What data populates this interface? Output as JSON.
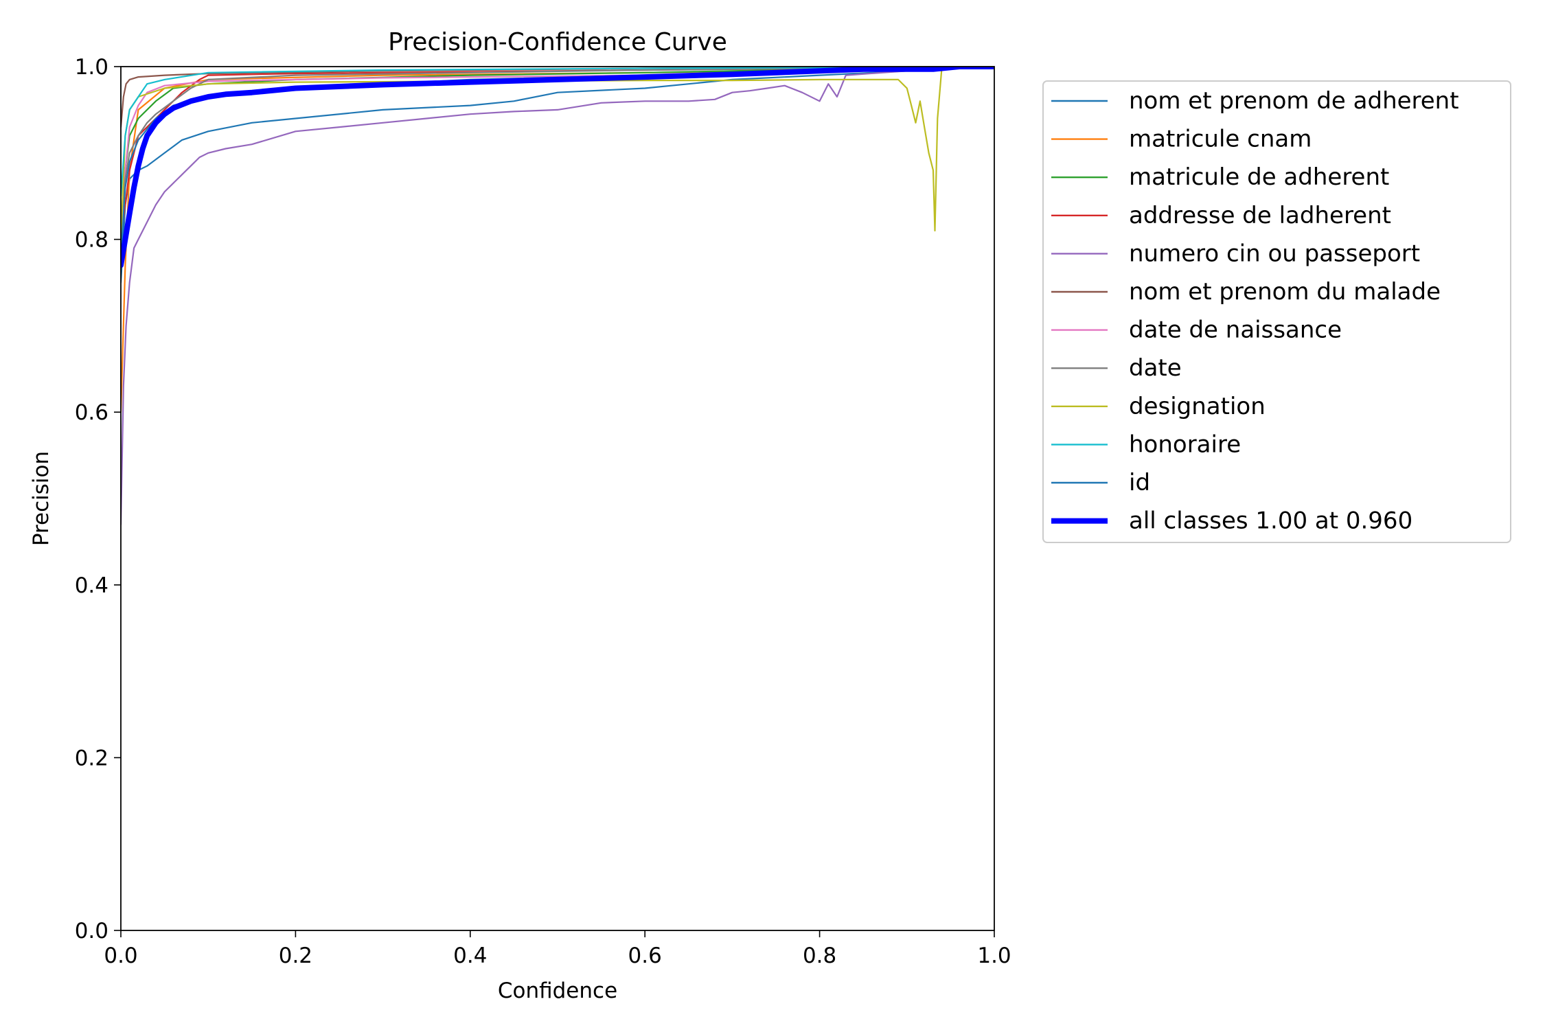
{
  "chart_data": {
    "type": "line",
    "title": "Precision-Confidence Curve",
    "xlabel": "Confidence",
    "ylabel": "Precision",
    "xlim": [
      0,
      1
    ],
    "ylim": [
      0,
      1
    ],
    "xticks": [
      0.0,
      0.2,
      0.4,
      0.6,
      0.8,
      1.0
    ],
    "yticks": [
      0.0,
      0.2,
      0.4,
      0.6,
      0.8,
      1.0
    ],
    "xtick_labels": [
      "0.0",
      "0.2",
      "0.4",
      "0.6",
      "0.8",
      "1.0"
    ],
    "ytick_labels": [
      "0.0",
      "0.2",
      "0.4",
      "0.6",
      "0.8",
      "1.0"
    ],
    "grid": false,
    "legend_position": "outside-right-top",
    "series": [
      {
        "name": "nom et prenom de adherent",
        "color": "#1f77b4",
        "x": [
          0.0,
          0.005,
          0.01,
          0.02,
          0.03,
          0.05,
          0.07,
          0.1,
          0.15,
          0.2,
          0.3,
          0.4,
          0.45,
          0.5,
          0.6,
          0.7,
          0.8,
          0.9,
          1.0
        ],
        "y": [
          0.75,
          0.84,
          0.87,
          0.88,
          0.885,
          0.9,
          0.915,
          0.925,
          0.935,
          0.94,
          0.95,
          0.955,
          0.96,
          0.97,
          0.975,
          0.985,
          0.99,
          0.995,
          1.0
        ]
      },
      {
        "name": "matricule cnam",
        "color": "#ff7f0e",
        "x": [
          0.0,
          0.005,
          0.01,
          0.02,
          0.05,
          0.1,
          0.3,
          0.6,
          0.8,
          0.9,
          1.0
        ],
        "y": [
          0.6,
          0.77,
          0.88,
          0.95,
          0.975,
          0.985,
          0.99,
          0.993,
          0.996,
          0.998,
          1.0
        ]
      },
      {
        "name": "matricule de adherent",
        "color": "#2ca02c",
        "x": [
          0.0,
          0.005,
          0.01,
          0.02,
          0.04,
          0.06,
          0.1,
          0.2,
          0.4,
          0.6,
          0.8,
          1.0
        ],
        "y": [
          0.8,
          0.88,
          0.92,
          0.94,
          0.96,
          0.975,
          0.98,
          0.985,
          0.99,
          0.993,
          0.997,
          1.0
        ]
      },
      {
        "name": "addresse de ladherent",
        "color": "#d62728",
        "x": [
          0.0,
          0.01,
          0.02,
          0.05,
          0.07,
          0.09,
          0.1,
          0.2,
          0.5,
          0.8,
          1.0
        ],
        "y": [
          0.8,
          0.88,
          0.92,
          0.95,
          0.97,
          0.985,
          0.99,
          0.992,
          0.995,
          0.998,
          1.0
        ]
      },
      {
        "name": "numero cin ou passeport",
        "color": "#9467bd",
        "x": [
          0.0,
          0.003,
          0.006,
          0.01,
          0.015,
          0.02,
          0.03,
          0.04,
          0.05,
          0.06,
          0.07,
          0.08,
          0.09,
          0.1,
          0.12,
          0.15,
          0.2,
          0.25,
          0.3,
          0.35,
          0.4,
          0.45,
          0.5,
          0.55,
          0.6,
          0.65,
          0.68,
          0.7,
          0.72,
          0.74,
          0.76,
          0.78,
          0.8,
          0.81,
          0.82,
          0.83,
          0.9,
          1.0
        ],
        "y": [
          0.47,
          0.63,
          0.7,
          0.75,
          0.79,
          0.8,
          0.82,
          0.84,
          0.855,
          0.865,
          0.875,
          0.885,
          0.895,
          0.9,
          0.905,
          0.91,
          0.925,
          0.93,
          0.935,
          0.94,
          0.945,
          0.948,
          0.95,
          0.958,
          0.96,
          0.96,
          0.962,
          0.97,
          0.972,
          0.975,
          0.978,
          0.97,
          0.96,
          0.98,
          0.965,
          0.99,
          0.995,
          1.0
        ]
      },
      {
        "name": "nom et prenom du malade",
        "color": "#8c564b",
        "x": [
          0.0,
          0.003,
          0.006,
          0.01,
          0.02,
          0.05,
          0.1,
          0.3,
          0.6,
          1.0
        ],
        "y": [
          0.93,
          0.965,
          0.98,
          0.985,
          0.988,
          0.99,
          0.992,
          0.995,
          0.998,
          1.0
        ]
      },
      {
        "name": "date de naissance",
        "color": "#e377c2",
        "x": [
          0.0,
          0.005,
          0.01,
          0.02,
          0.03,
          0.05,
          0.1,
          0.3,
          0.6,
          0.8,
          1.0
        ],
        "y": [
          0.8,
          0.88,
          0.93,
          0.955,
          0.97,
          0.978,
          0.983,
          0.987,
          0.99,
          0.993,
          1.0
        ]
      },
      {
        "name": "date",
        "color": "#7f7f7f",
        "x": [
          0.0,
          0.005,
          0.01,
          0.02,
          0.03,
          0.04,
          0.06,
          0.08,
          0.1,
          0.2,
          0.4,
          0.6,
          0.8,
          1.0
        ],
        "y": [
          0.82,
          0.87,
          0.9,
          0.92,
          0.935,
          0.945,
          0.96,
          0.975,
          0.985,
          0.99,
          0.993,
          0.996,
          0.998,
          1.0
        ]
      },
      {
        "name": "designation",
        "color": "#bcbd22",
        "x": [
          0.0,
          0.005,
          0.01,
          0.02,
          0.05,
          0.1,
          0.2,
          0.4,
          0.6,
          0.7,
          0.8,
          0.88,
          0.89,
          0.9,
          0.905,
          0.91,
          0.915,
          0.92,
          0.925,
          0.93,
          0.932,
          0.935,
          0.94,
          1.0
        ],
        "y": [
          0.8,
          0.92,
          0.95,
          0.965,
          0.975,
          0.98,
          0.982,
          0.983,
          0.984,
          0.984,
          0.985,
          0.985,
          0.985,
          0.975,
          0.955,
          0.935,
          0.96,
          0.93,
          0.9,
          0.88,
          0.81,
          0.94,
          1.0,
          1.0
        ]
      },
      {
        "name": "honoraire",
        "color": "#17becf",
        "x": [
          0.0,
          0.005,
          0.01,
          0.02,
          0.03,
          0.05,
          0.1,
          0.3,
          0.6,
          1.0
        ],
        "y": [
          0.85,
          0.92,
          0.95,
          0.965,
          0.98,
          0.985,
          0.993,
          0.996,
          0.998,
          1.0
        ]
      },
      {
        "name": "id",
        "color": "#1f77b4",
        "x": [
          0.0,
          0.005,
          0.01,
          0.02,
          0.04,
          0.06,
          0.1,
          0.2,
          0.4,
          0.6,
          0.8,
          1.0
        ],
        "y": [
          0.78,
          0.86,
          0.89,
          0.915,
          0.94,
          0.955,
          0.965,
          0.975,
          0.985,
          0.99,
          0.996,
          1.0
        ]
      },
      {
        "name": "all classes 1.00 at 0.960",
        "color": "#0000ff",
        "bold": true,
        "x": [
          0.0,
          0.005,
          0.01,
          0.015,
          0.02,
          0.025,
          0.03,
          0.04,
          0.05,
          0.06,
          0.08,
          0.1,
          0.12,
          0.15,
          0.2,
          0.3,
          0.4,
          0.5,
          0.6,
          0.7,
          0.8,
          0.85,
          0.9,
          0.93,
          0.96,
          1.0
        ],
        "y": [
          0.77,
          0.8,
          0.83,
          0.86,
          0.885,
          0.905,
          0.92,
          0.935,
          0.945,
          0.952,
          0.96,
          0.965,
          0.968,
          0.97,
          0.975,
          0.979,
          0.982,
          0.985,
          0.988,
          0.991,
          0.995,
          0.997,
          0.997,
          0.997,
          1.0,
          1.0
        ]
      }
    ]
  }
}
